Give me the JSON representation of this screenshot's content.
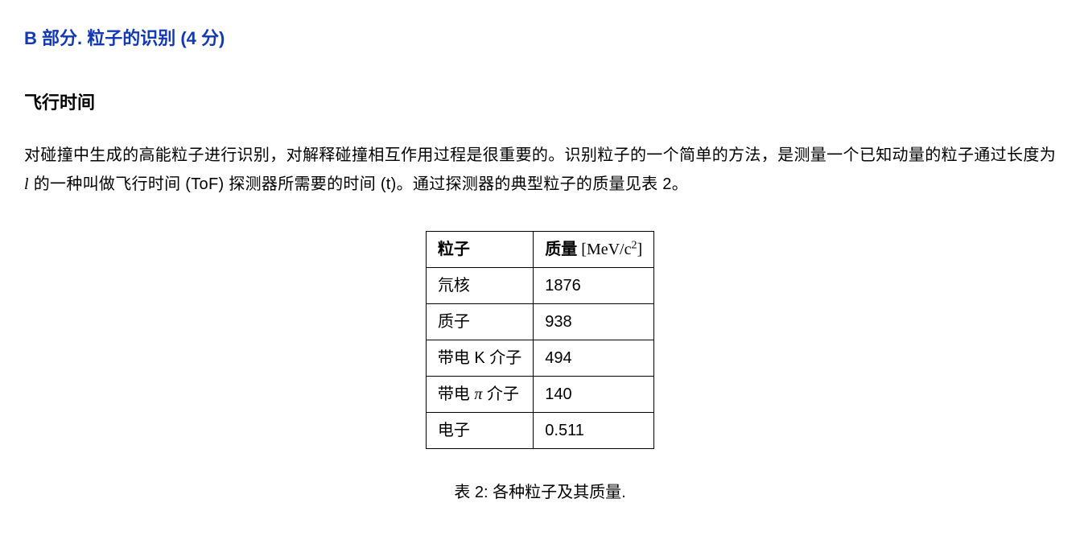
{
  "colors": {
    "heading": "#1239b3",
    "text": "#000000",
    "background": "#ffffff",
    "table_border": "#000000"
  },
  "heading": {
    "text": "B 部分. 粒子的识别 (4 分)"
  },
  "subheading": {
    "text": "飞行时间"
  },
  "paragraph": {
    "part1": "对碰撞中生成的高能粒子进行识别，对解释碰撞相互作用过程是很重要的。识别粒子的一个简单的方法，是测量一个已知动量的粒子通过长度为 ",
    "var_l": "l",
    "part2": " 的一种叫做飞行时间 (ToF) 探测器所需要的时间 (t)。通过探测器的典型粒子的质量见表 2。"
  },
  "table": {
    "headers": {
      "particle": "粒子",
      "mass_label": "质量",
      "mass_unit_prefix": " [MeV/c",
      "mass_unit_exp": "2",
      "mass_unit_suffix": "]"
    },
    "rows": [
      {
        "particle": "氘核",
        "mass": "1876"
      },
      {
        "particle": "质子",
        "mass": "938"
      },
      {
        "particle": "带电 K 介子",
        "mass": "494"
      },
      {
        "particle_prefix": "带电 ",
        "particle_symbol": "π",
        "particle_suffix": " 介子",
        "mass": "140"
      },
      {
        "particle": "电子",
        "mass": "0.511"
      }
    ],
    "caption": "表 2: 各种粒子及其质量."
  }
}
